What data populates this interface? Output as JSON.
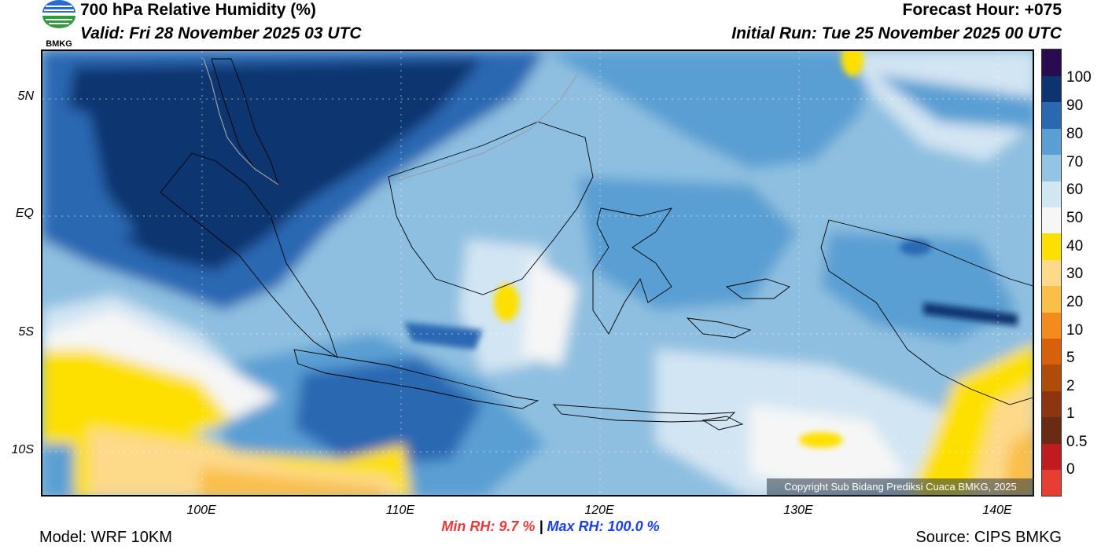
{
  "header": {
    "title": "700 hPa Relative Humidity (%)",
    "valid": "Valid: Fri 28 November 2025 03 UTC",
    "forecast_hour": "Forecast Hour: +075",
    "initial_run": "Initial Run: Tue 25 November 2025 00 UTC"
  },
  "logo": {
    "text": "BMKG",
    "icon": "bmkg-logo-icon"
  },
  "map": {
    "lat_labels": [
      "5N",
      "EQ",
      "5S",
      "10S"
    ],
    "lon_labels": [
      "100E",
      "110E",
      "120E",
      "130E",
      "140E"
    ],
    "lat_ticks_deg": [
      5,
      0,
      -5,
      -10
    ],
    "lon_ticks_deg": [
      100,
      110,
      120,
      130,
      140
    ],
    "extent": {
      "lon_min": 92,
      "lon_max": 142,
      "lat_min": -12,
      "lat_max": 7
    },
    "copyright": "Copyright Sub Bidang Prediksi Cuaca BMKG, 2025"
  },
  "colorbar": {
    "labels": [
      "100",
      "90",
      "80",
      "70",
      "60",
      "50",
      "40",
      "30",
      "20",
      "10",
      "5",
      "2",
      "1",
      "0.5",
      "0"
    ],
    "colors": [
      "#e83d32",
      "#c01b1f",
      "#6a2a14",
      "#8c3510",
      "#b04c0a",
      "#d8600a",
      "#f48b1a",
      "#fbbf48",
      "#fdd98a",
      "#fde000",
      "#f6f6f6",
      "#d2e5f3",
      "#93c4e3",
      "#5a9fd3",
      "#2a68b2",
      "#0b3470",
      "#2a0a50"
    ]
  },
  "stats": {
    "min_label": "Min RH:",
    "min_value": "9.7 %",
    "separator": "|",
    "max_label": "Max RH:",
    "max_value": "100.0 %"
  },
  "footer": {
    "model": "Model: WRF 10KM",
    "source": "Source: CIPS BMKG"
  }
}
